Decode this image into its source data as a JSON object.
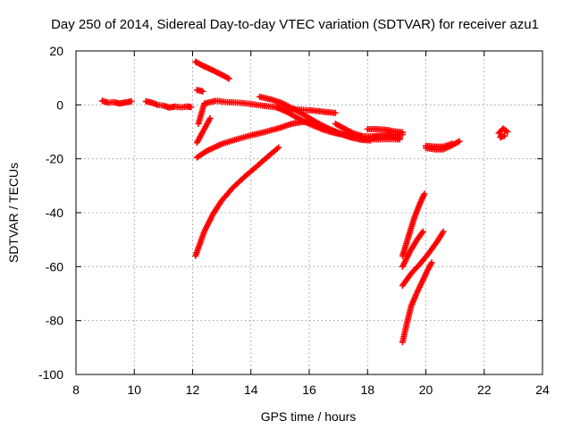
{
  "chart_data": {
    "type": "scatter",
    "title": "Day 250 of 2014, Sidereal Day-to-day VTEC variation (SDTVAR) for receiver azu1",
    "xlabel": "GPS time / hours",
    "ylabel": "SDTVAR / TECUs",
    "xlim": [
      8,
      24
    ],
    "ylim": [
      -100,
      20
    ],
    "x_ticks": [
      8,
      10,
      12,
      14,
      16,
      18,
      20,
      22,
      24
    ],
    "y_ticks": [
      20,
      0,
      -20,
      -40,
      -60,
      -80,
      -100
    ],
    "x_tick_labels": [
      "8",
      "10",
      "12",
      "14",
      "16",
      "18",
      "20",
      "22",
      "24"
    ],
    "y_tick_labels": [
      "20",
      "0",
      "-20",
      "-40",
      "-60",
      "-80",
      "-100"
    ],
    "grid": true,
    "marker": "plus",
    "color": "#ff0000",
    "series": [
      {
        "x": [
          8.9,
          9.1,
          9.3,
          9.5,
          9.7,
          9.9
        ],
        "y": [
          1.5,
          0.8,
          1.0,
          0.5,
          0.9,
          1.3
        ]
      },
      {
        "x": [
          10.4,
          10.6,
          10.8,
          11.0,
          11.2,
          11.4,
          11.6,
          11.8,
          11.95
        ],
        "y": [
          1.3,
          0.8,
          0.0,
          -0.3,
          -1.0,
          -0.6,
          -0.9,
          -0.6,
          -0.8
        ]
      },
      {
        "x": [
          12.1,
          12.3,
          12.5,
          12.7,
          12.9,
          13.1,
          13.25
        ],
        "y": [
          16,
          14.8,
          13.8,
          12.8,
          11.7,
          10.6,
          9.7
        ]
      },
      {
        "x": [
          12.15,
          12.25,
          12.35
        ],
        "y": [
          5.5,
          5.3,
          5.0
        ]
      },
      {
        "x": [
          12.2,
          12.4,
          12.8,
          13.2,
          13.6,
          14.0,
          14.4,
          14.8,
          15.2,
          15.6,
          16.0,
          16.3,
          16.6,
          16.9
        ],
        "y": [
          -7,
          0.5,
          1.5,
          1.0,
          0.8,
          0.3,
          -0.3,
          -0.8,
          -1.3,
          -1.7,
          -2.0,
          -2.3,
          -2.7,
          -3.0
        ]
      },
      {
        "x": [
          12.15,
          12.35,
          12.6
        ],
        "y": [
          -14,
          -10,
          -5
        ]
      },
      {
        "x": [
          12.15,
          12.5,
          13.0,
          13.5,
          14.0,
          14.5,
          15.0,
          15.4,
          15.8,
          16.2,
          16.6,
          17.0,
          17.4,
          17.8,
          18.1
        ],
        "y": [
          -19.5,
          -17,
          -14.5,
          -12.8,
          -11.3,
          -10.0,
          -8.5,
          -7.0,
          -6.3,
          -7.0,
          -8.8,
          -10.5,
          -12.0,
          -13.0,
          -13.2
        ]
      },
      {
        "x": [
          12.1,
          12.4,
          12.7,
          13.0,
          13.4,
          13.8,
          14.2,
          14.6,
          14.95
        ],
        "y": [
          -56,
          -47,
          -40.5,
          -35.5,
          -30.5,
          -26.5,
          -22.8,
          -19.0,
          -15.8
        ]
      },
      {
        "x": [
          14.3,
          14.7,
          15.1,
          15.5,
          15.9,
          16.3,
          16.7,
          17.1,
          17.5,
          17.9,
          18.3,
          18.7,
          19.1
        ],
        "y": [
          3.0,
          2.0,
          0.5,
          -1.8,
          -4.2,
          -6.8,
          -9.0,
          -10.8,
          -12.0,
          -12.6,
          -12.8,
          -12.7,
          -12.8
        ]
      },
      {
        "x": [
          14.9,
          15.3,
          15.7,
          16.1,
          16.5,
          16.9,
          17.3,
          17.7,
          18.1,
          18.5,
          18.9,
          19.2
        ],
        "y": [
          -1.0,
          -3.0,
          -5.5,
          -7.5,
          -9.3,
          -10.5,
          -11.3,
          -11.7,
          -11.7,
          -11.4,
          -11.0,
          -11.0
        ]
      },
      {
        "x": [
          16.9,
          17.2,
          17.5,
          17.8
        ],
        "y": [
          -7.0,
          -8.8,
          -10.5,
          -11.5
        ]
      },
      {
        "x": [
          18.0,
          18.3,
          18.6,
          18.9,
          19.2
        ],
        "y": [
          -9.0,
          -9.0,
          -9.2,
          -9.8,
          -10.2
        ]
      },
      {
        "x": [
          18.2,
          18.5,
          18.8,
          19.1
        ],
        "y": [
          -12.0,
          -11.6,
          -11.8,
          -12.4
        ]
      },
      {
        "x": [
          19.2,
          19.4,
          19.6,
          19.8,
          19.95
        ],
        "y": [
          -56,
          -49,
          -42,
          -36.5,
          -33
        ]
      },
      {
        "x": [
          19.2,
          19.45,
          19.7,
          19.9
        ],
        "y": [
          -60,
          -54.5,
          -50,
          -47
        ]
      },
      {
        "x": [
          19.2,
          19.5,
          19.8,
          20.1,
          20.4,
          20.6
        ],
        "y": [
          -67,
          -62.5,
          -59,
          -55,
          -50.5,
          -47
        ]
      },
      {
        "x": [
          19.2,
          19.35,
          19.5,
          19.7,
          19.9,
          20.05,
          20.2
        ],
        "y": [
          -88,
          -81,
          -74.5,
          -69.5,
          -65,
          -61.5,
          -58.5
        ]
      },
      {
        "x": [
          20.0,
          20.3,
          20.6,
          20.9,
          21.15
        ],
        "y": [
          -16.0,
          -16.5,
          -16.5,
          -15.0,
          -13.5
        ]
      },
      {
        "x": [
          20.0,
          20.3,
          20.6,
          20.9
        ],
        "y": [
          -15.2,
          -15.5,
          -15.5,
          -14.4
        ]
      },
      {
        "x": [
          22.5,
          22.65,
          22.8
        ],
        "y": [
          -10.5,
          -8.8,
          -10.0
        ]
      },
      {
        "x": [
          22.55,
          22.7
        ],
        "y": [
          -12.0,
          -11.5
        ]
      }
    ]
  }
}
